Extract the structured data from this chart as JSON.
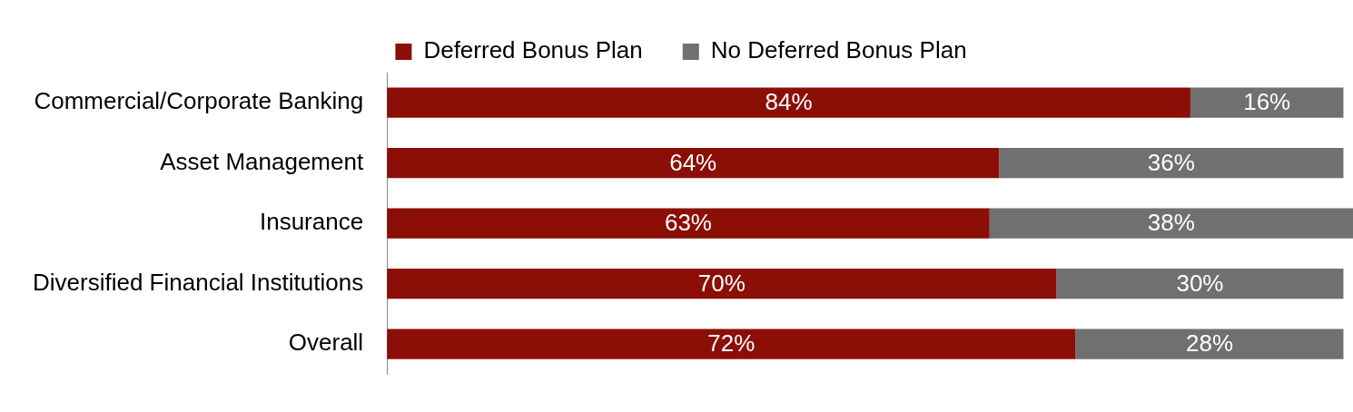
{
  "chart_data": {
    "type": "bar",
    "orientation": "horizontal",
    "stacked": true,
    "categories": [
      "Commercial/Corporate Banking",
      "Asset Management",
      "Insurance",
      "Diversified Financial Institutions",
      "Overall"
    ],
    "series": [
      {
        "name": "Deferred Bonus Plan",
        "color": "#8b0f06",
        "values": [
          84,
          64,
          63,
          70,
          72
        ],
        "value_labels": [
          "84%",
          "64%",
          "63%",
          "70%",
          "72%"
        ]
      },
      {
        "name": "No Deferred Bonus Plan",
        "color": "#707070",
        "values": [
          16,
          36,
          38,
          30,
          28
        ],
        "value_labels": [
          "16%",
          "36%",
          "38%",
          "30%",
          "28%"
        ]
      }
    ],
    "tick_labels": "y",
    "legend": "top"
  }
}
